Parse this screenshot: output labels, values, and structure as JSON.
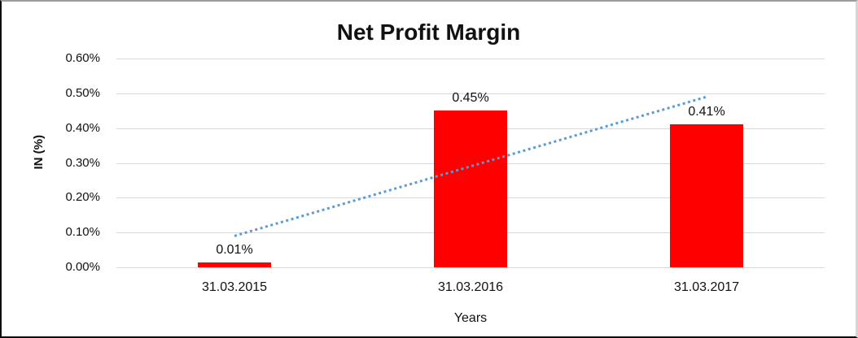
{
  "chart_data": {
    "type": "bar",
    "title": "Net Profit Margin",
    "xlabel": "Years",
    "ylabel": "IN (%)",
    "categories": [
      "31.03.2015",
      "31.03.2016",
      "31.03.2017"
    ],
    "values": [
      0.01,
      0.45,
      0.41
    ],
    "data_labels": [
      "0.01%",
      "0.45%",
      "0.41%"
    ],
    "ytick_labels": [
      "0.00%",
      "0.10%",
      "0.20%",
      "0.30%",
      "0.40%",
      "0.50%",
      "0.60%"
    ],
    "ytick_values": [
      0.0,
      0.1,
      0.2,
      0.3,
      0.4,
      0.5,
      0.6
    ],
    "ylim": [
      0.0,
      0.6
    ],
    "grid": true,
    "legend": "none",
    "bar_color": "#FF0000",
    "gridline_color": "#d9d9d9",
    "trendline": {
      "type": "linear",
      "style": "dotted",
      "color": "#5B9BD5",
      "start_value": 0.09,
      "end_value": 0.49
    }
  }
}
